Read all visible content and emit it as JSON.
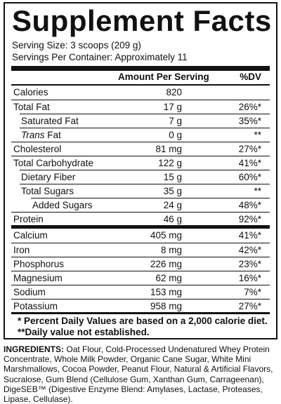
{
  "title": "Supplement Facts",
  "serving_size": "Serving Size: 3 scoops (209 g)",
  "servings_per_container": "Servings Per Container: Approximately 11",
  "header": {
    "amount": "Amount Per Serving",
    "dv": "%DV"
  },
  "rows": [
    {
      "name": "Calories",
      "amount": "820",
      "dv": ""
    },
    {
      "name": "Total Fat",
      "amount": "17 g",
      "dv": "26%*"
    },
    {
      "name": "Saturated Fat",
      "amount": "7 g",
      "dv": "35%*"
    },
    {
      "name": "Trans",
      "name_suffix": " Fat",
      "amount": "0 g",
      "dv": "**"
    },
    {
      "name": "Cholesterol",
      "amount": "81 mg",
      "dv": "27%*"
    },
    {
      "name": "Total Carbohydrate",
      "amount": "122 g",
      "dv": "41%*"
    },
    {
      "name": "Dietary Fiber",
      "amount": "15 g",
      "dv": "60%*"
    },
    {
      "name": "Total Sugars",
      "amount": "35 g",
      "dv": "**"
    },
    {
      "name": "Added Sugars",
      "amount": "24 g",
      "dv": "48%*"
    },
    {
      "name": "Protein",
      "amount": "46 g",
      "dv": "92%*"
    },
    {
      "name": "Calcium",
      "amount": "405 mg",
      "dv": "41%*"
    },
    {
      "name": "Iron",
      "amount": "8 mg",
      "dv": "42%*"
    },
    {
      "name": "Phosphorus",
      "amount": "226 mg",
      "dv": "23%*"
    },
    {
      "name": "Magnesium",
      "amount": "62 mg",
      "dv": "16%*"
    },
    {
      "name": "Sodium",
      "amount": "153 mg",
      "dv": "7%*"
    },
    {
      "name": "Potassium",
      "amount": "958 mg",
      "dv": "27%*"
    }
  ],
  "footnotes": [
    "* Percent Daily Values are based on a 2,000 calorie diet.",
    "**Daily value not established."
  ],
  "ingredients": {
    "label": "INGREDIENTS:",
    "text": "Oat Flour, Cold-Processed Undenatured Whey Protein Concentrate, Whole Milk Powder, Organic Cane Sugar, White Mini Marshmallows, Cocoa Powder, Peanut Flour, Natural & Artificial Flavors, Sucralose, Gum Blend (Cellulose Gum, Xanthan Gum, Carrageenan), DigeSEB™ (Digestive Enzyme Blend: Amylases, Lactase, Proteases, Lipase, Cellulase)."
  }
}
